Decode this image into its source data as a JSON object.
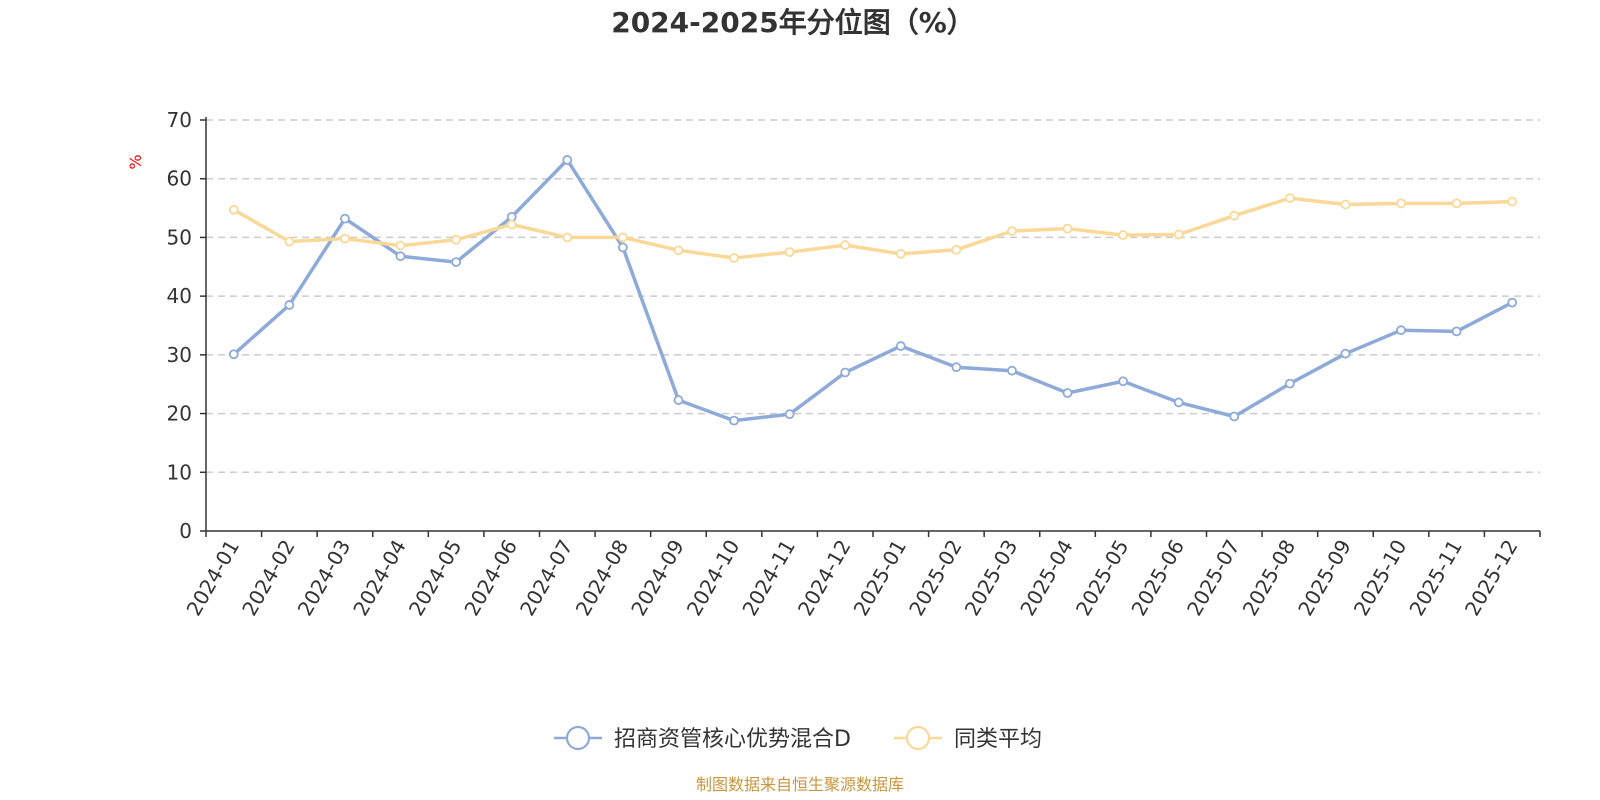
{
  "colors": {
    "series_1": "#8eaad8",
    "series_2": "#fad998",
    "unit": "#ff0000",
    "source": "#c8963e"
  },
  "source_note": "制图数据来自恒生聚源数据库",
  "chart_data": {
    "type": "line",
    "title": "2024-2025年分位图（%）",
    "ylabel": "%",
    "xlabel": "",
    "ylim": [
      0,
      70
    ],
    "yticks": [
      0,
      10,
      20,
      30,
      40,
      50,
      60,
      70
    ],
    "grid": true,
    "legend_position": "bottom",
    "categories": [
      "2024-01",
      "2024-02",
      "2024-03",
      "2024-04",
      "2024-05",
      "2024-06",
      "2024-07",
      "2024-08",
      "2024-09",
      "2024-10",
      "2024-11",
      "2024-12",
      "2025-01",
      "2025-02",
      "2025-03",
      "2025-04",
      "2025-05",
      "2025-06",
      "2025-07",
      "2025-08",
      "2025-09",
      "2025-10",
      "2025-11",
      "2025-12"
    ],
    "series": [
      {
        "name": "招商资管核心优势混合D",
        "color": "#8eaad8",
        "values": [
          30.1,
          38.5,
          53.2,
          46.8,
          45.8,
          53.5,
          63.2,
          48.3,
          22.3,
          18.8,
          19.9,
          27.0,
          31.5,
          27.9,
          27.3,
          23.5,
          25.5,
          21.9,
          19.5,
          25.1,
          30.2,
          34.2,
          34.0,
          38.9
        ]
      },
      {
        "name": "同类平均",
        "color": "#fad998",
        "values": [
          54.7,
          49.3,
          49.8,
          48.6,
          49.6,
          52.2,
          50.0,
          50.0,
          47.8,
          46.5,
          47.5,
          48.7,
          47.2,
          47.9,
          51.1,
          51.5,
          50.4,
          50.5,
          53.7,
          56.7,
          55.6,
          55.8,
          55.8,
          56.1
        ]
      }
    ]
  }
}
